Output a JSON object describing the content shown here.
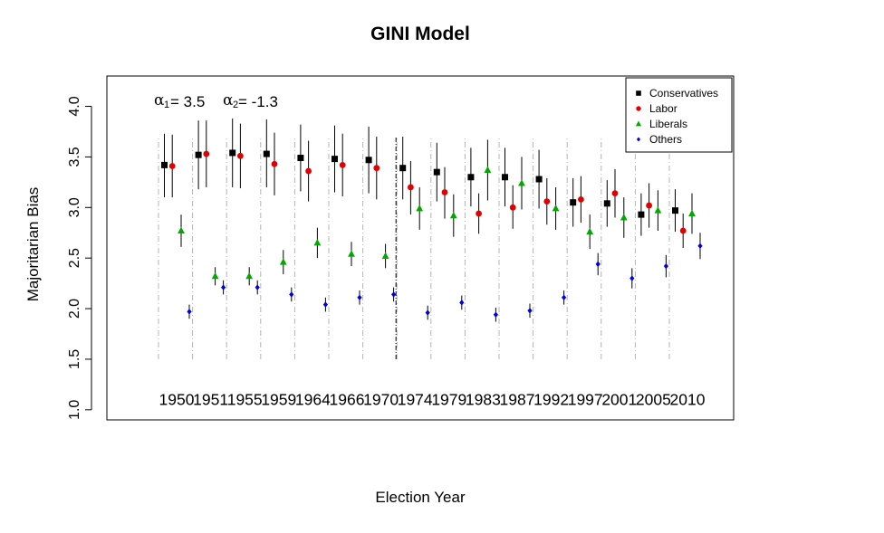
{
  "chart_data": {
    "type": "scatter",
    "title": "GINI Model",
    "xlabel": "Election Year",
    "ylabel": "Majoritarian Bias",
    "ylim": [
      0.9,
      4.3
    ],
    "yticks": [
      "1.0",
      "1.5",
      "2.0",
      "2.5",
      "3.0",
      "3.5",
      "4.0"
    ],
    "categories": [
      "1950",
      "1951",
      "1955",
      "1959",
      "1964",
      "1966",
      "1970",
      "1974",
      "1979",
      "1983",
      "1987",
      "1992",
      "1997",
      "2001",
      "2005",
      "2010"
    ],
    "year_label_y": 1.1,
    "separator_ymin": 1.5,
    "split_after_category": "1970",
    "grid": false,
    "legend_position": "top-right",
    "annotation": {
      "alpha1_symbol": "α",
      "alpha1_subscript": "1",
      "alpha1_value": "= 3.5",
      "alpha2_symbol": "α",
      "alpha2_subscript": "2",
      "alpha2_value": "= -1.3"
    },
    "series": [
      {
        "name": "Conservatives",
        "color": "#000000",
        "marker": "square",
        "values": [
          3.42,
          3.52,
          3.54,
          3.53,
          3.49,
          3.48,
          3.47,
          3.39,
          3.35,
          3.3,
          3.3,
          3.28,
          3.05,
          3.04,
          2.93,
          2.97
        ],
        "lower": [
          3.1,
          3.18,
          3.2,
          3.2,
          3.16,
          3.15,
          3.14,
          3.08,
          3.06,
          3.01,
          3.01,
          2.99,
          2.81,
          2.81,
          2.72,
          2.76
        ],
        "upper": [
          3.73,
          3.86,
          3.88,
          3.87,
          3.82,
          3.81,
          3.8,
          3.7,
          3.64,
          3.59,
          3.59,
          3.57,
          3.29,
          3.27,
          3.14,
          3.18
        ]
      },
      {
        "name": "Labor",
        "color": "#e00000",
        "marker": "circle",
        "values": [
          3.41,
          3.53,
          3.51,
          3.43,
          3.36,
          3.42,
          3.39,
          3.2,
          3.15,
          2.94,
          3.0,
          3.06,
          3.08,
          3.14,
          3.02,
          2.77
        ],
        "lower": [
          3.1,
          3.2,
          3.19,
          3.12,
          3.06,
          3.11,
          3.08,
          2.93,
          2.89,
          2.74,
          2.79,
          2.83,
          2.85,
          2.9,
          2.8,
          2.6
        ],
        "upper": [
          3.72,
          3.86,
          3.83,
          3.74,
          3.66,
          3.73,
          3.7,
          3.46,
          3.4,
          3.14,
          3.22,
          3.29,
          3.31,
          3.38,
          3.24,
          2.94
        ]
      },
      {
        "name": "Liberals",
        "color": "#00a800",
        "marker": "triangle",
        "values": [
          2.77,
          2.32,
          2.32,
          2.46,
          2.65,
          2.54,
          2.52,
          2.99,
          2.92,
          3.37,
          3.24,
          2.99,
          2.76,
          2.9,
          2.97,
          2.94
        ],
        "lower": [
          2.61,
          2.23,
          2.23,
          2.34,
          2.5,
          2.42,
          2.4,
          2.78,
          2.71,
          3.07,
          2.98,
          2.78,
          2.59,
          2.7,
          2.77,
          2.74
        ],
        "upper": [
          2.93,
          2.41,
          2.41,
          2.58,
          2.8,
          2.66,
          2.64,
          3.2,
          3.13,
          3.67,
          3.5,
          3.2,
          2.93,
          3.1,
          3.17,
          3.14
        ]
      },
      {
        "name": "Others",
        "color": "#0000e0",
        "marker": "diamond",
        "values": [
          1.97,
          2.21,
          2.21,
          2.14,
          2.04,
          2.11,
          2.14,
          1.96,
          2.06,
          1.94,
          1.98,
          2.11,
          2.44,
          2.3,
          2.42,
          2.62
        ],
        "lower": [
          1.9,
          2.14,
          2.14,
          2.07,
          1.97,
          2.04,
          2.07,
          1.89,
          1.99,
          1.87,
          1.91,
          2.04,
          2.33,
          2.2,
          2.31,
          2.49
        ],
        "upper": [
          2.04,
          2.28,
          2.28,
          2.21,
          2.11,
          2.18,
          2.21,
          2.03,
          2.13,
          2.01,
          2.05,
          2.18,
          2.55,
          2.4,
          2.53,
          2.75
        ]
      }
    ]
  }
}
